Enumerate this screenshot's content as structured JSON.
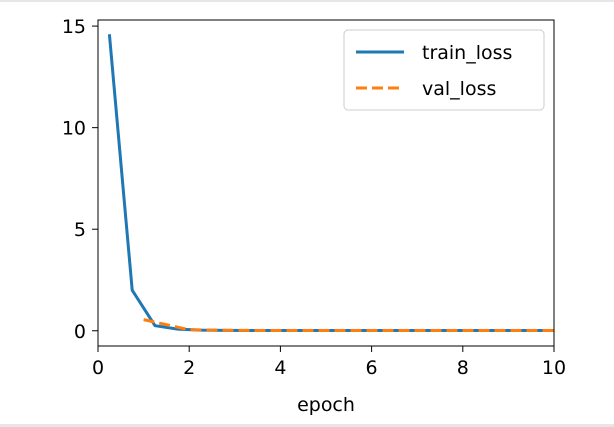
{
  "chart_data": {
    "type": "line",
    "title": "",
    "xlabel": "epoch",
    "ylabel": "",
    "xlim": [
      0,
      10
    ],
    "ylim": [
      -0.75,
      15.3
    ],
    "xticks": [
      0,
      2,
      4,
      6,
      8,
      10
    ],
    "yticks": [
      0,
      5,
      10,
      15
    ],
    "grid": false,
    "legend_position": "top-right",
    "series": [
      {
        "name": "train_loss",
        "color": "#1f77b4",
        "style": "solid",
        "x": [
          0.25,
          0.75,
          1.25,
          1.75,
          2.25,
          2.75,
          3.25,
          3.75,
          4.25,
          4.75,
          5.25,
          5.75,
          6.25,
          6.75,
          7.25,
          7.75,
          8.25,
          8.75,
          9.25,
          9.75,
          10.0
        ],
        "y": [
          14.6,
          2.0,
          0.25,
          0.08,
          0.03,
          0.02,
          0.01,
          0.01,
          0.01,
          0.01,
          0.01,
          0.01,
          0.01,
          0.01,
          0.01,
          0.01,
          0.01,
          0.01,
          0.01,
          0.01,
          0.01
        ]
      },
      {
        "name": "val_loss",
        "color": "#ff7f0e",
        "style": "dashed",
        "x": [
          1.0,
          2.0,
          3.0,
          4.0,
          5.0,
          6.0,
          7.0,
          8.0,
          9.0,
          10.0
        ],
        "y": [
          0.55,
          0.05,
          0.02,
          0.01,
          0.01,
          0.01,
          0.01,
          0.01,
          0.01,
          0.01
        ]
      }
    ]
  }
}
